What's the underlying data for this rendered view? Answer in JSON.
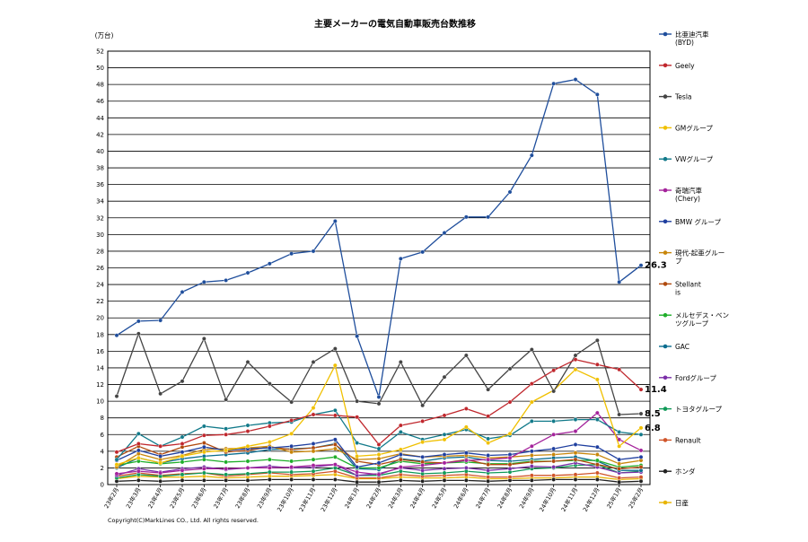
{
  "chart_data": {
    "type": "line",
    "title": "主要メーカーの電気自動車販売台数推移",
    "unit_label": "(万台)",
    "ylim": [
      0,
      52
    ],
    "y_ticks": [
      0,
      2,
      4,
      6,
      8,
      10,
      12,
      14,
      16,
      18,
      20,
      22,
      24,
      26,
      28,
      30,
      32,
      34,
      36,
      38,
      40,
      42,
      44,
      46,
      48,
      50,
      52
    ],
    "grid": true,
    "legend_position": "right",
    "categories": [
      "23年2月",
      "23年3月",
      "23年4月",
      "23年5月",
      "23年6月",
      "23年7月",
      "23年8月",
      "23年9月",
      "23年10月",
      "23年11月",
      "23年12月",
      "24年1月",
      "24年2月",
      "24年3月",
      "24年4月",
      "24年5月",
      "24年6月",
      "24年7月",
      "24年8月",
      "24年9月",
      "24年10月",
      "24年11月",
      "24年12月",
      "25年1月",
      "25年2月"
    ],
    "x_tick_labels": [
      "23年2月",
      "23年3月",
      "23年4月",
      "23年5月",
      "23年6月",
      "23年7月",
      "23年8月",
      "23年9月",
      "23年10月",
      "23年11月",
      "23年12月",
      "24年1月",
      "24年2月",
      "24年3月",
      "24年4月",
      "24年5月",
      "24年6月",
      "24年7月",
      "24年8月",
      "24年9月",
      "24年10月",
      "24年11月",
      "24年12月",
      "25年1月",
      "25年2月"
    ],
    "series": [
      {
        "name": "比亜迪汽車(BYD)",
        "color": "#1f4e9c",
        "values": [
          17.9,
          19.6,
          19.7,
          23.1,
          24.3,
          24.5,
          25.4,
          26.5,
          27.7,
          28.0,
          31.6,
          17.8,
          10.5,
          27.1,
          27.9,
          30.2,
          32.1,
          32.1,
          35.1,
          39.5,
          48.1,
          48.6,
          46.8,
          24.3,
          26.3
        ]
      },
      {
        "name": "Geely",
        "color": "#c0272d",
        "values": [
          3.9,
          4.9,
          4.6,
          4.9,
          5.9,
          6.0,
          6.4,
          7.0,
          7.7,
          8.4,
          8.3,
          8.1,
          4.8,
          7.1,
          7.6,
          8.3,
          9.1,
          8.2,
          9.9,
          12.1,
          13.7,
          15.0,
          14.4,
          13.8,
          11.4
        ]
      },
      {
        "name": "Tesla",
        "color": "#444444",
        "values": [
          10.6,
          18.1,
          10.9,
          12.4,
          17.5,
          10.2,
          14.7,
          12.1,
          9.9,
          14.7,
          16.3,
          10.0,
          9.7,
          14.7,
          9.5,
          12.9,
          15.5,
          11.4,
          13.9,
          16.2,
          11.2,
          15.5,
          17.3,
          8.4,
          8.5
        ]
      },
      {
        "name": "GMグループ",
        "color": "#f0c000",
        "values": [
          2.4,
          3.2,
          2.6,
          3.4,
          3.9,
          4.1,
          4.6,
          5.1,
          6.1,
          9.2,
          14.3,
          3.4,
          3.6,
          4.2,
          5.1,
          5.4,
          6.9,
          5.0,
          6.1,
          9.9,
          11.3,
          13.8,
          12.6,
          4.6,
          6.8
        ]
      },
      {
        "name": "VWグループ",
        "color": "#127a8a",
        "values": [
          3.0,
          6.1,
          4.6,
          5.7,
          7.0,
          6.7,
          7.1,
          7.4,
          7.5,
          8.4,
          8.9,
          5.0,
          4.3,
          6.3,
          5.4,
          6.0,
          6.6,
          5.5,
          5.9,
          7.6,
          7.6,
          7.8,
          7.8,
          6.3,
          6.0
        ]
      },
      {
        "name": "奇瑞汽車(Chery)",
        "color": "#a4239b",
        "values": [
          1.3,
          1.6,
          1.4,
          1.7,
          1.9,
          1.9,
          2.0,
          2.0,
          2.1,
          2.3,
          2.4,
          1.5,
          1.2,
          2.1,
          2.3,
          2.6,
          2.9,
          3.0,
          3.2,
          4.6,
          6.0,
          6.4,
          8.6,
          5.4,
          4.1
        ]
      },
      {
        "name": "BMW グループ",
        "color": "#1f3f9f",
        "values": [
          2.9,
          4.1,
          3.4,
          3.9,
          4.5,
          4.1,
          4.3,
          4.4,
          4.6,
          4.9,
          5.4,
          2.1,
          2.6,
          3.6,
          3.3,
          3.6,
          3.8,
          3.5,
          3.6,
          4.0,
          4.3,
          4.8,
          4.5,
          3.0,
          3.3
        ]
      },
      {
        "name": "現代-起亜グループ",
        "color": "#c8860a",
        "values": [
          2.1,
          3.7,
          3.0,
          3.5,
          4.2,
          4.3,
          4.4,
          4.6,
          3.9,
          4.0,
          4.3,
          3.0,
          3.1,
          3.7,
          3.3,
          3.4,
          3.5,
          3.2,
          3.3,
          3.5,
          3.6,
          3.8,
          3.6,
          2.5,
          2.9
        ]
      },
      {
        "name": "Stellantis",
        "color": "#b04a0e",
        "values": [
          3.3,
          4.6,
          3.6,
          4.5,
          5.0,
          3.9,
          4.1,
          4.5,
          4.2,
          4.4,
          4.8,
          2.8,
          2.4,
          3.0,
          2.7,
          2.6,
          3.0,
          2.4,
          2.4,
          2.7,
          2.8,
          3.0,
          2.4,
          1.9,
          2.1
        ]
      },
      {
        "name": "メルセデス・ベンツグループ",
        "color": "#1fae2a",
        "values": [
          2.3,
          2.8,
          2.5,
          2.7,
          3.0,
          2.7,
          2.8,
          3.0,
          2.8,
          3.0,
          3.3,
          2.0,
          2.0,
          2.8,
          2.5,
          2.6,
          2.7,
          2.5,
          2.5,
          2.8,
          2.8,
          2.9,
          2.9,
          2.1,
          2.3
        ]
      },
      {
        "name": "GAC",
        "color": "#0b6d8f",
        "values": [
          2.0,
          3.2,
          2.6,
          3.1,
          3.4,
          3.6,
          3.8,
          4.2,
          4.3,
          4.4,
          4.9,
          1.9,
          1.8,
          3.1,
          2.8,
          3.2,
          3.3,
          2.9,
          2.8,
          3.0,
          3.2,
          3.3,
          2.8,
          1.7,
          1.7
        ]
      },
      {
        "name": "Fordグループ",
        "color": "#7b2fa8",
        "values": [
          1.1,
          1.9,
          1.5,
          1.9,
          2.1,
          1.8,
          2.0,
          2.2,
          2.0,
          2.1,
          2.4,
          1.1,
          1.3,
          2.0,
          1.7,
          1.9,
          2.0,
          1.7,
          1.9,
          2.2,
          2.1,
          2.6,
          2.1,
          1.4,
          1.5
        ]
      },
      {
        "name": "トヨタグループ",
        "color": "#109a58",
        "values": [
          0.8,
          1.2,
          1.0,
          1.2,
          1.4,
          1.2,
          1.3,
          1.5,
          1.5,
          1.6,
          2.0,
          1.1,
          1.1,
          1.6,
          1.3,
          1.4,
          1.6,
          1.4,
          1.5,
          1.9,
          2.0,
          2.3,
          2.4,
          1.4,
          1.6
        ]
      },
      {
        "name": "Renault",
        "color": "#d0552a",
        "values": [
          1.0,
          1.4,
          1.1,
          1.3,
          1.4,
          1.0,
          1.2,
          1.4,
          1.2,
          1.3,
          1.6,
          0.8,
          0.8,
          1.2,
          1.0,
          1.1,
          1.2,
          0.9,
          0.9,
          1.1,
          1.1,
          1.2,
          1.4,
          0.8,
          0.9
        ]
      },
      {
        "name": "ホンダ",
        "color": "#222222",
        "values": [
          0.4,
          0.5,
          0.4,
          0.5,
          0.5,
          0.5,
          0.5,
          0.6,
          0.6,
          0.6,
          0.6,
          0.3,
          0.3,
          0.5,
          0.4,
          0.5,
          0.5,
          0.4,
          0.5,
          0.5,
          0.6,
          0.6,
          0.6,
          0.3,
          0.4
        ]
      },
      {
        "name": "日産",
        "color": "#e8b400",
        "values": [
          0.7,
          1.0,
          0.9,
          0.9,
          1.0,
          0.8,
          0.9,
          1.0,
          1.0,
          1.1,
          1.2,
          0.7,
          0.7,
          0.9,
          0.8,
          0.8,
          0.9,
          0.7,
          0.7,
          0.8,
          0.8,
          0.9,
          0.9,
          0.6,
          0.7
        ]
      }
    ],
    "annotations": [
      {
        "text": "26.3",
        "series": "比亜迪汽車(BYD)",
        "x": "25年2月",
        "y": 26.3
      },
      {
        "text": "11.4",
        "series": "Geely",
        "x": "25年2月",
        "y": 11.4
      },
      {
        "text": "8.5",
        "series": "Tesla",
        "x": "25年2月",
        "y": 8.5
      },
      {
        "text": "6.8",
        "series": "GMグループ",
        "x": "25年2月",
        "y": 6.8
      }
    ],
    "footnote": "Copyright(C)MarkLines CO., Ltd. All rights reserved."
  }
}
